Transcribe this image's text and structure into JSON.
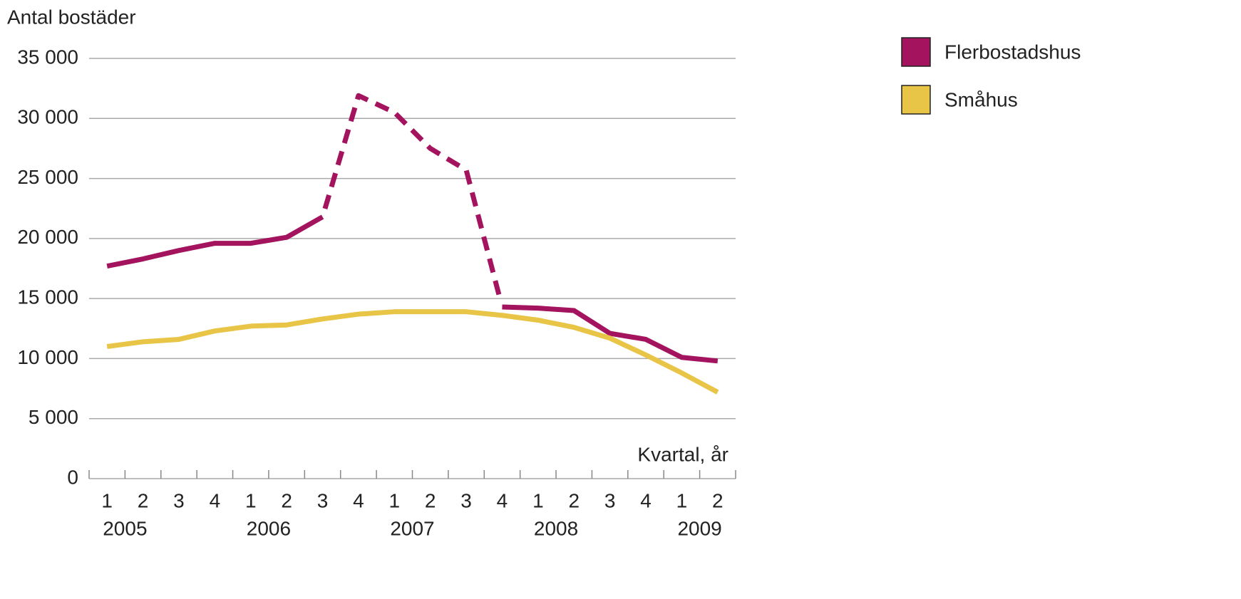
{
  "chart_data": {
    "type": "line",
    "y_axis_label": "Antal bostäder",
    "x_axis_label": "Kvartal, år",
    "categories": [
      "1",
      "2",
      "3",
      "4",
      "1",
      "2",
      "3",
      "4",
      "1",
      "2",
      "3",
      "4",
      "1",
      "2",
      "3",
      "4",
      "1",
      "2"
    ],
    "years": [
      "2005",
      "2006",
      "2007",
      "2008",
      "2009"
    ],
    "series": [
      {
        "name": "Flerbostadshus",
        "color": "#a3135e",
        "values": [
          17700,
          18300,
          19000,
          19600,
          19600,
          20100,
          21800,
          31900,
          30500,
          27500,
          25700,
          14300,
          14200,
          14000,
          12100,
          11600,
          10100,
          9800
        ],
        "dashed_from_index": 6,
        "dashed_to_index": 11
      },
      {
        "name": "Småhus",
        "color": "#e8c547",
        "values": [
          11000,
          11400,
          11600,
          12300,
          12700,
          12800,
          13300,
          13700,
          13900,
          13900,
          13900,
          13600,
          13200,
          12600,
          11700,
          10300,
          8800,
          7200
        ]
      }
    ],
    "ylim": [
      0,
      35000
    ],
    "yticks": [
      {
        "value": 0,
        "label": "0"
      },
      {
        "value": 5000,
        "label": "5 000"
      },
      {
        "value": 10000,
        "label": "10 000"
      },
      {
        "value": 15000,
        "label": "15 000"
      },
      {
        "value": 20000,
        "label": "20 000"
      },
      {
        "value": 25000,
        "label": "25 000"
      },
      {
        "value": 30000,
        "label": "30 000"
      },
      {
        "value": 35000,
        "label": "35 000"
      }
    ],
    "grid": true,
    "legend": "right"
  }
}
